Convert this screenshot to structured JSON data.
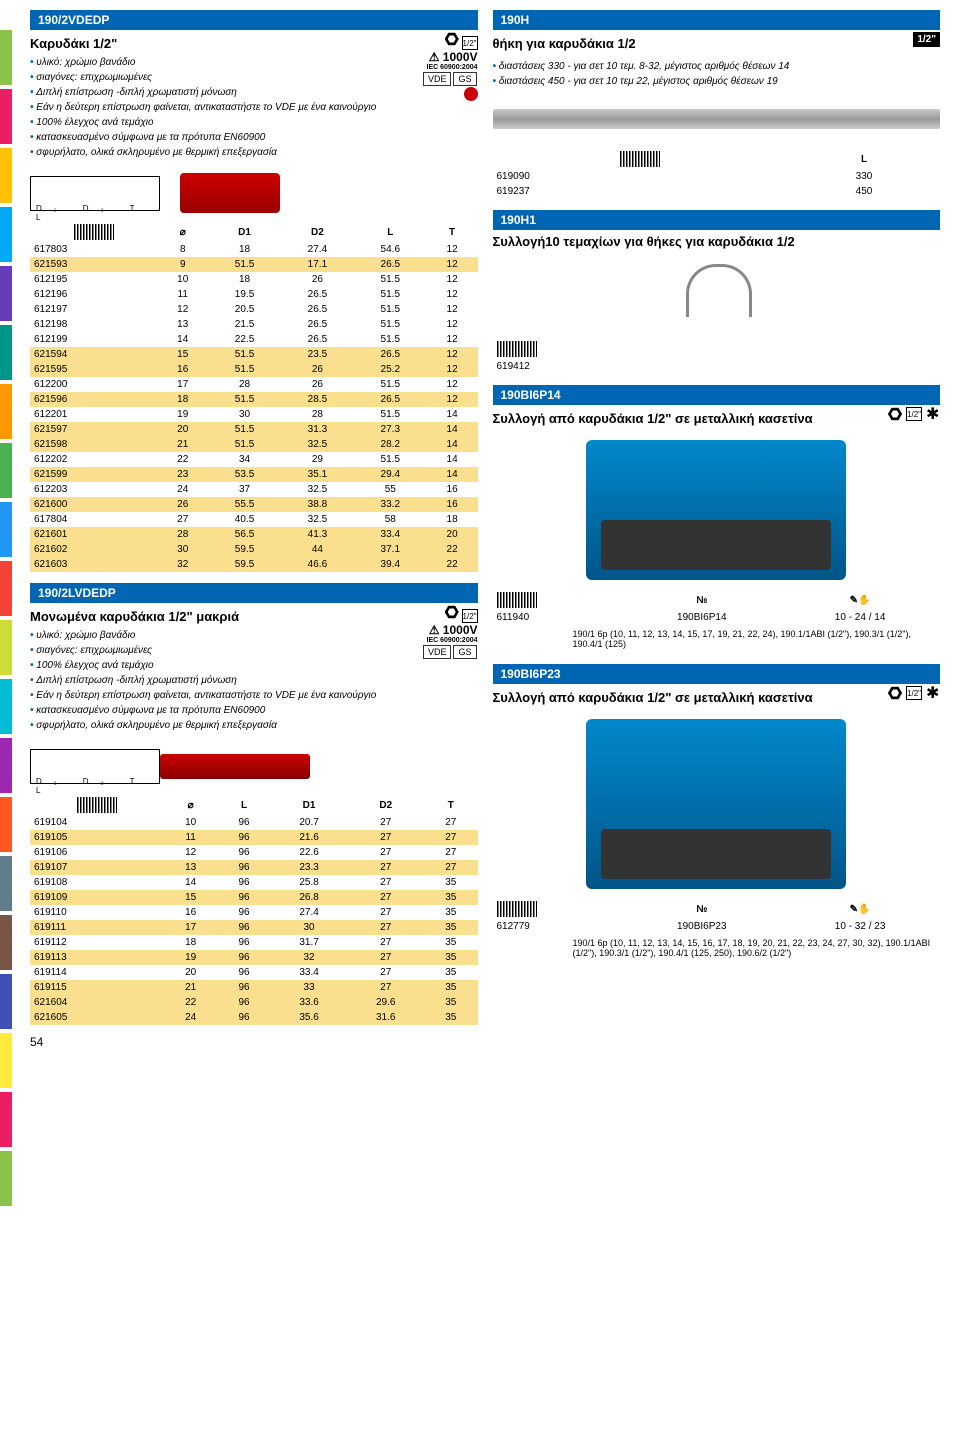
{
  "page_number": "54",
  "color_tabs": [
    "#8bc34a",
    "#e91e63",
    "#ffc107",
    "#03a9f4",
    "#673ab7",
    "#009688",
    "#ff9800",
    "#4caf50",
    "#2196f3",
    "#f44336",
    "#cddc39",
    "#00bcd4",
    "#9c27b0",
    "#ff5722",
    "#607d8b",
    "#795548",
    "#3f51b5",
    "#ffeb3b",
    "#e91e63",
    "#8bc34a"
  ],
  "left": {
    "sec1": {
      "code": "190/2VDEDP",
      "title": "Καρυδάκι 1/2\"",
      "bullets": [
        "υλικό: χρώμιο βανάδιο",
        "σιαγόνες: επιχρωμιωμένες",
        "Διπλή επίστρωση -διπλή χρωματιστή μόνωση",
        "Εάν η δεύτερη επίστρωση φαίνεται, αντικαταστήστε το VDE με ένα καινούργιο",
        "100% έλεγχος ανά τεμάχιο",
        "κατασκευασμένο σύμφωνα με τα πρότυπα EN60900",
        "σφυρήλατο, ολικά σκληρυμένο με θερμική επεξεργασία"
      ],
      "voltage_label": "1000V",
      "voltage_sub": "IEC 60900:2004",
      "drive_label": "1/2\"",
      "headers": [
        "",
        "⌀",
        "D1",
        "D2",
        "L",
        "T"
      ],
      "rows": [
        {
          "c": [
            "617803",
            "8",
            "18",
            "27.4",
            "54.6",
            "12"
          ],
          "hl": false
        },
        {
          "c": [
            "621593",
            "9",
            "51.5",
            "17.1",
            "26.5",
            "12"
          ],
          "hl": true
        },
        {
          "c": [
            "612195",
            "10",
            "18",
            "26",
            "51.5",
            "12"
          ],
          "hl": false
        },
        {
          "c": [
            "612196",
            "11",
            "19.5",
            "26.5",
            "51.5",
            "12"
          ],
          "hl": false
        },
        {
          "c": [
            "612197",
            "12",
            "20.5",
            "26.5",
            "51.5",
            "12"
          ],
          "hl": false
        },
        {
          "c": [
            "612198",
            "13",
            "21.5",
            "26.5",
            "51.5",
            "12"
          ],
          "hl": false
        },
        {
          "c": [
            "612199",
            "14",
            "22.5",
            "26.5",
            "51.5",
            "12"
          ],
          "hl": false
        },
        {
          "c": [
            "621594",
            "15",
            "51.5",
            "23.5",
            "26.5",
            "12"
          ],
          "hl": true
        },
        {
          "c": [
            "621595",
            "16",
            "51.5",
            "26",
            "25.2",
            "12"
          ],
          "hl": true
        },
        {
          "c": [
            "612200",
            "17",
            "28",
            "26",
            "51.5",
            "12"
          ],
          "hl": false
        },
        {
          "c": [
            "621596",
            "18",
            "51.5",
            "28.5",
            "26.5",
            "12"
          ],
          "hl": true
        },
        {
          "c": [
            "612201",
            "19",
            "30",
            "28",
            "51.5",
            "14"
          ],
          "hl": false
        },
        {
          "c": [
            "621597",
            "20",
            "51.5",
            "31.3",
            "27.3",
            "14"
          ],
          "hl": true
        },
        {
          "c": [
            "621598",
            "21",
            "51.5",
            "32.5",
            "28.2",
            "14"
          ],
          "hl": true
        },
        {
          "c": [
            "612202",
            "22",
            "34",
            "29",
            "51.5",
            "14"
          ],
          "hl": false
        },
        {
          "c": [
            "621599",
            "23",
            "53.5",
            "35.1",
            "29.4",
            "14"
          ],
          "hl": true
        },
        {
          "c": [
            "612203",
            "24",
            "37",
            "32.5",
            "55",
            "16"
          ],
          "hl": false
        },
        {
          "c": [
            "621600",
            "26",
            "55.5",
            "38.8",
            "33.2",
            "16"
          ],
          "hl": true
        },
        {
          "c": [
            "617804",
            "27",
            "40.5",
            "32.5",
            "58",
            "18"
          ],
          "hl": false
        },
        {
          "c": [
            "621601",
            "28",
            "56.5",
            "41.3",
            "33.4",
            "20"
          ],
          "hl": true
        },
        {
          "c": [
            "621602",
            "30",
            "59.5",
            "44",
            "37.1",
            "22"
          ],
          "hl": true
        },
        {
          "c": [
            "621603",
            "32",
            "59.5",
            "46.6",
            "39.4",
            "22"
          ],
          "hl": true
        }
      ]
    },
    "sec2": {
      "code": "190/2LVDEDP",
      "title": "Μονωμένα καρυδάκια 1/2\" μακριά",
      "bullets": [
        "υλικό: χρώμιο βανάδιο",
        "σιαγόνες: επιχρωμιωμένες",
        "100% έλεγχος ανά τεμάχιο",
        "Διπλή επίστρωση -διπλή χρωματιστή μόνωση",
        "Εάν η δεύτερη επίστρωση φαίνεται, αντικαταστήστε το VDE με ένα καινούργιο",
        "κατασκευασμένο σύμφωνα με τα πρότυπα EN60900",
        "σφυρήλατο, ολικά σκληρυμένο με θερμική επεξεργασία"
      ],
      "voltage_label": "1000V",
      "voltage_sub": "IEC 60900:2004",
      "drive_label": "1/2\"",
      "headers": [
        "",
        "⌀",
        "L",
        "D1",
        "D2",
        "T"
      ],
      "rows": [
        {
          "c": [
            "619104",
            "10",
            "96",
            "20.7",
            "27",
            "27"
          ],
          "hl": false
        },
        {
          "c": [
            "619105",
            "11",
            "96",
            "21.6",
            "27",
            "27"
          ],
          "hl": true
        },
        {
          "c": [
            "619106",
            "12",
            "96",
            "22.6",
            "27",
            "27"
          ],
          "hl": false
        },
        {
          "c": [
            "619107",
            "13",
            "96",
            "23.3",
            "27",
            "27"
          ],
          "hl": true
        },
        {
          "c": [
            "619108",
            "14",
            "96",
            "25.8",
            "27",
            "35"
          ],
          "hl": false
        },
        {
          "c": [
            "619109",
            "15",
            "96",
            "26.8",
            "27",
            "35"
          ],
          "hl": true
        },
        {
          "c": [
            "619110",
            "16",
            "96",
            "27.4",
            "27",
            "35"
          ],
          "hl": false
        },
        {
          "c": [
            "619111",
            "17",
            "96",
            "30",
            "27",
            "35"
          ],
          "hl": true
        },
        {
          "c": [
            "619112",
            "18",
            "96",
            "31.7",
            "27",
            "35"
          ],
          "hl": false
        },
        {
          "c": [
            "619113",
            "19",
            "96",
            "32",
            "27",
            "35"
          ],
          "hl": true
        },
        {
          "c": [
            "619114",
            "20",
            "96",
            "33.4",
            "27",
            "35"
          ],
          "hl": false
        },
        {
          "c": [
            "619115",
            "21",
            "96",
            "33",
            "27",
            "35"
          ],
          "hl": true
        },
        {
          "c": [
            "621604",
            "22",
            "96",
            "33.6",
            "29.6",
            "35"
          ],
          "hl": true
        },
        {
          "c": [
            "621605",
            "24",
            "96",
            "35.6",
            "31.6",
            "35"
          ],
          "hl": true
        }
      ]
    }
  },
  "right": {
    "sec1": {
      "code": "190H",
      "title": "θήκη για καρυδάκια 1/2",
      "badge": "1/2\"",
      "bullets": [
        "διαστάσεις 330 - για σετ 10 τεμ. 8-32, μέγιστος αριθμός θέσεων 14",
        "διαστάσεις 450 - για σετ 10 τεμ 22, μέγιστος αριθμός θέσεων 19"
      ],
      "headers": [
        "",
        "L"
      ],
      "rows": [
        {
          "c": [
            "619090",
            "330"
          ]
        },
        {
          "c": [
            "619237",
            "450"
          ]
        }
      ]
    },
    "sec2": {
      "code": "190H1",
      "title": "Συλλογή10 τεμαχίων για θήκες για καρυδάκια 1/2",
      "rows": [
        {
          "c": [
            "619412"
          ]
        }
      ]
    },
    "sec3": {
      "code": "190BI6P14",
      "title": "Συλλογή από καρυδάκια 1/2\" σε μεταλλική κασετίνα",
      "drive_label": "1/2\"",
      "headers": [
        "",
        "№",
        "",
        ""
      ],
      "rows": [
        {
          "c": [
            "611940",
            "190BI6P14",
            "10 - 24 / 14"
          ]
        }
      ],
      "contents_label": "190/1 6p (10, 11, 12, 13, 14, 15, 17, 19, 21, 22, 24), 190.1/1ABI (1/2\"), 190.3/1 (1/2\"), 190.4/1 (125)"
    },
    "sec4": {
      "code": "190BI6P23",
      "title": "Συλλογή από καρυδάκια 1/2\" σε μεταλλική κασετίνα",
      "drive_label": "1/2\"",
      "headers": [
        "",
        "№",
        "",
        ""
      ],
      "rows": [
        {
          "c": [
            "612779",
            "190BI6P23",
            "10 - 32 / 23"
          ]
        }
      ],
      "contents_label": "190/1 6p (10, 11, 12, 13, 14, 15, 16, 17, 18, 19, 20, 21, 22, 23, 24, 27, 30, 32), 190.1/1ABI (1/2\"), 190.3/1 (1/2\"), 190.4/1 (125, 250), 190.6/2 (1/2\")"
    }
  }
}
